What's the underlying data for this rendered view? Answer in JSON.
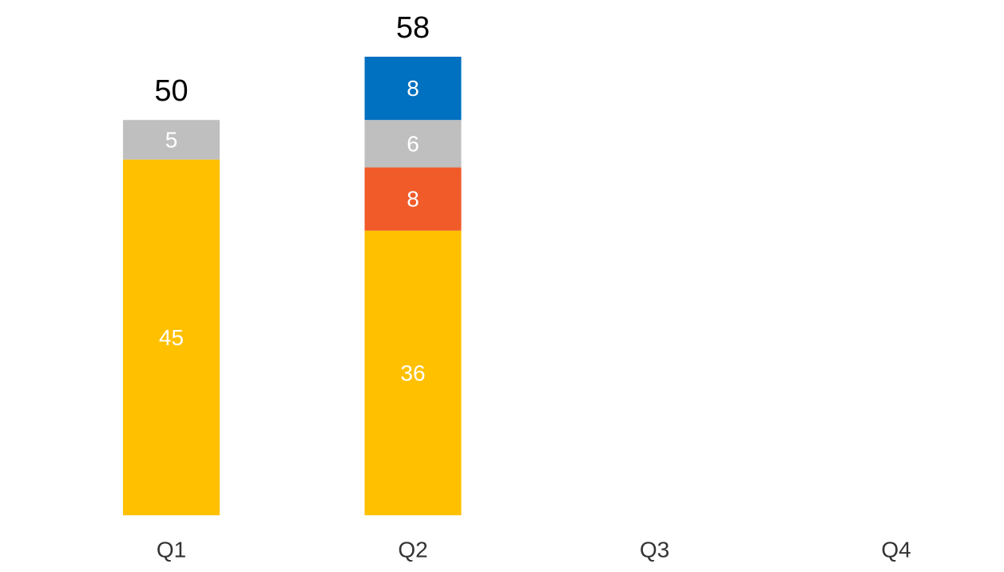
{
  "chart_data": {
    "type": "bar",
    "stacked": true,
    "categories": [
      "Q1",
      "Q2",
      "Q3",
      "Q4"
    ],
    "series": [
      {
        "color": "#FFC000",
        "values": [
          45,
          36,
          null,
          null
        ]
      },
      {
        "color": "#F15A29",
        "values": [
          null,
          8,
          null,
          null
        ]
      },
      {
        "color": "#BFBFBF",
        "values": [
          5,
          6,
          null,
          null
        ]
      },
      {
        "color": "#0070C0",
        "values": [
          null,
          8,
          null,
          null
        ]
      }
    ],
    "totals": [
      50,
      58,
      null,
      null
    ],
    "ylim": [
      0,
      58
    ],
    "grid": false,
    "legend": "none",
    "title": "",
    "xlabel": "",
    "ylabel": ""
  }
}
